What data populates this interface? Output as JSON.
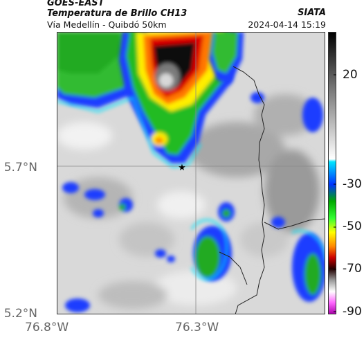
{
  "header": {
    "satellite": "GOES-EAST",
    "product": "Temperatura de Brillo CH13",
    "route": "Vía Medellín - Quibdó 50km",
    "org": "SIATA",
    "timestamp": "2024-04-14 15:19"
  },
  "axes": {
    "y_labels": [
      "5.7°N",
      "5.2°N"
    ],
    "x_labels": [
      "76.8°W",
      "76.3°W"
    ]
  },
  "colorbar": {
    "labels": [
      "20",
      "-30",
      "-50",
      "-70",
      "-90"
    ],
    "colors_top_to_bottom": [
      "#000000",
      "#555555",
      "#aaaaaa",
      "#ffffff",
      "#00e5ff",
      "#0033ff",
      "#00aa00",
      "#ffff00",
      "#ff8800",
      "#cc0000",
      "#440000",
      "#999999",
      "#ff66ff",
      "#aa00aa"
    ]
  },
  "map": {
    "marker": "★"
  }
}
